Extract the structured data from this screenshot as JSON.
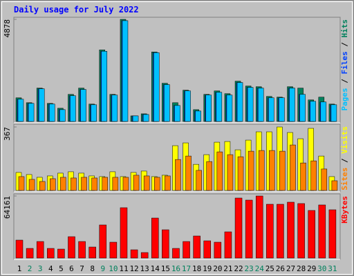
{
  "title": "Daily usage for July 2022",
  "legend_separator": " / ",
  "chart_data": [
    {
      "type": "bar",
      "ylim": [
        0,
        4878
      ],
      "yticks": [
        4878
      ],
      "series": [
        {
          "name": "Hits",
          "color": "#00805c",
          "values": [
            1129,
            896,
            1594,
            863,
            631,
            1294,
            1594,
            830,
            3419,
            1294,
            4878,
            266,
            365,
            3320,
            1825,
            896,
            1494,
            564,
            1294,
            1460,
            1328,
            1925,
            1693,
            1660,
            1195,
            1162,
            1660,
            1594,
            1029,
            1162,
            830
          ]
        },
        {
          "name": "Files",
          "color": "#0040ff",
          "values": [
            1062,
            863,
            1560,
            830,
            564,
            1228,
            1527,
            797,
            3353,
            1261,
            4814,
            266,
            332,
            3286,
            1759,
            763,
            1460,
            498,
            1261,
            1394,
            1261,
            1859,
            1627,
            1593,
            1129,
            1129,
            1593,
            1294,
            963,
            930,
            797
          ]
        },
        {
          "name": "Pages",
          "color": "#00c0ff",
          "values": [
            1062,
            863,
            1560,
            830,
            564,
            1228,
            1527,
            797,
            3353,
            1261,
            4814,
            266,
            332,
            3286,
            1759,
            763,
            1460,
            498,
            1261,
            1394,
            1261,
            1859,
            1627,
            1593,
            1129,
            1129,
            1593,
            1294,
            963,
            930,
            797
          ]
        }
      ]
    },
    {
      "type": "bar",
      "ylim": [
        0,
        367
      ],
      "yticks": [
        367
      ],
      "series": [
        {
          "name": "Visits",
          "color": "#ffff00",
          "values": [
            104,
            92,
            76,
            84,
            100,
            108,
            100,
            84,
            80,
            108,
            80,
            104,
            112,
            80,
            88,
            259,
            275,
            151,
            207,
            279,
            283,
            235,
            291,
            339,
            339,
            367,
            335,
            299,
            359,
            199,
            80
          ]
        },
        {
          "name": "Sites",
          "color": "#ff8000",
          "values": [
            80,
            64,
            52,
            68,
            76,
            72,
            76,
            72,
            76,
            76,
            76,
            88,
            84,
            76,
            84,
            179,
            199,
            116,
            167,
            223,
            207,
            195,
            227,
            231,
            231,
            227,
            263,
            159,
            171,
            124,
            56
          ]
        }
      ]
    },
    {
      "type": "bar",
      "ylim": [
        0,
        64161
      ],
      "yticks": [
        64161
      ],
      "categories": [
        "1",
        "2",
        "3",
        "4",
        "5",
        "6",
        "7",
        "8",
        "9",
        "10",
        "11",
        "12",
        "13",
        "14",
        "15",
        "16",
        "17",
        "18",
        "19",
        "20",
        "21",
        "22",
        "23",
        "24",
        "25",
        "26",
        "27",
        "28",
        "29",
        "30",
        "31"
      ],
      "category_colors": [
        "#000000",
        "#00805c",
        "#00805c",
        "#000000",
        "#000000",
        "#000000",
        "#000000",
        "#000000",
        "#00805c",
        "#00805c",
        "#000000",
        "#000000",
        "#000000",
        "#000000",
        "#000000",
        "#00805c",
        "#00805c",
        "#000000",
        "#000000",
        "#000000",
        "#000000",
        "#000000",
        "#00805c",
        "#00805c",
        "#000000",
        "#000000",
        "#000000",
        "#000000",
        "#000000",
        "#00805c",
        "#00805c"
      ],
      "series": [
        {
          "name": "KBytes",
          "color": "#ff0000",
          "values": [
            18538,
            9982,
            17111,
            9982,
            9269,
            22101,
            17111,
            11407,
            34220,
            16397,
            52044,
            8555,
            5703,
            41350,
            29230,
            9982,
            17111,
            22814,
            17823,
            16397,
            27091,
            62025,
            59886,
            64161,
            55609,
            55609,
            57748,
            56322,
            49192,
            54896,
            49905
          ]
        }
      ]
    }
  ]
}
